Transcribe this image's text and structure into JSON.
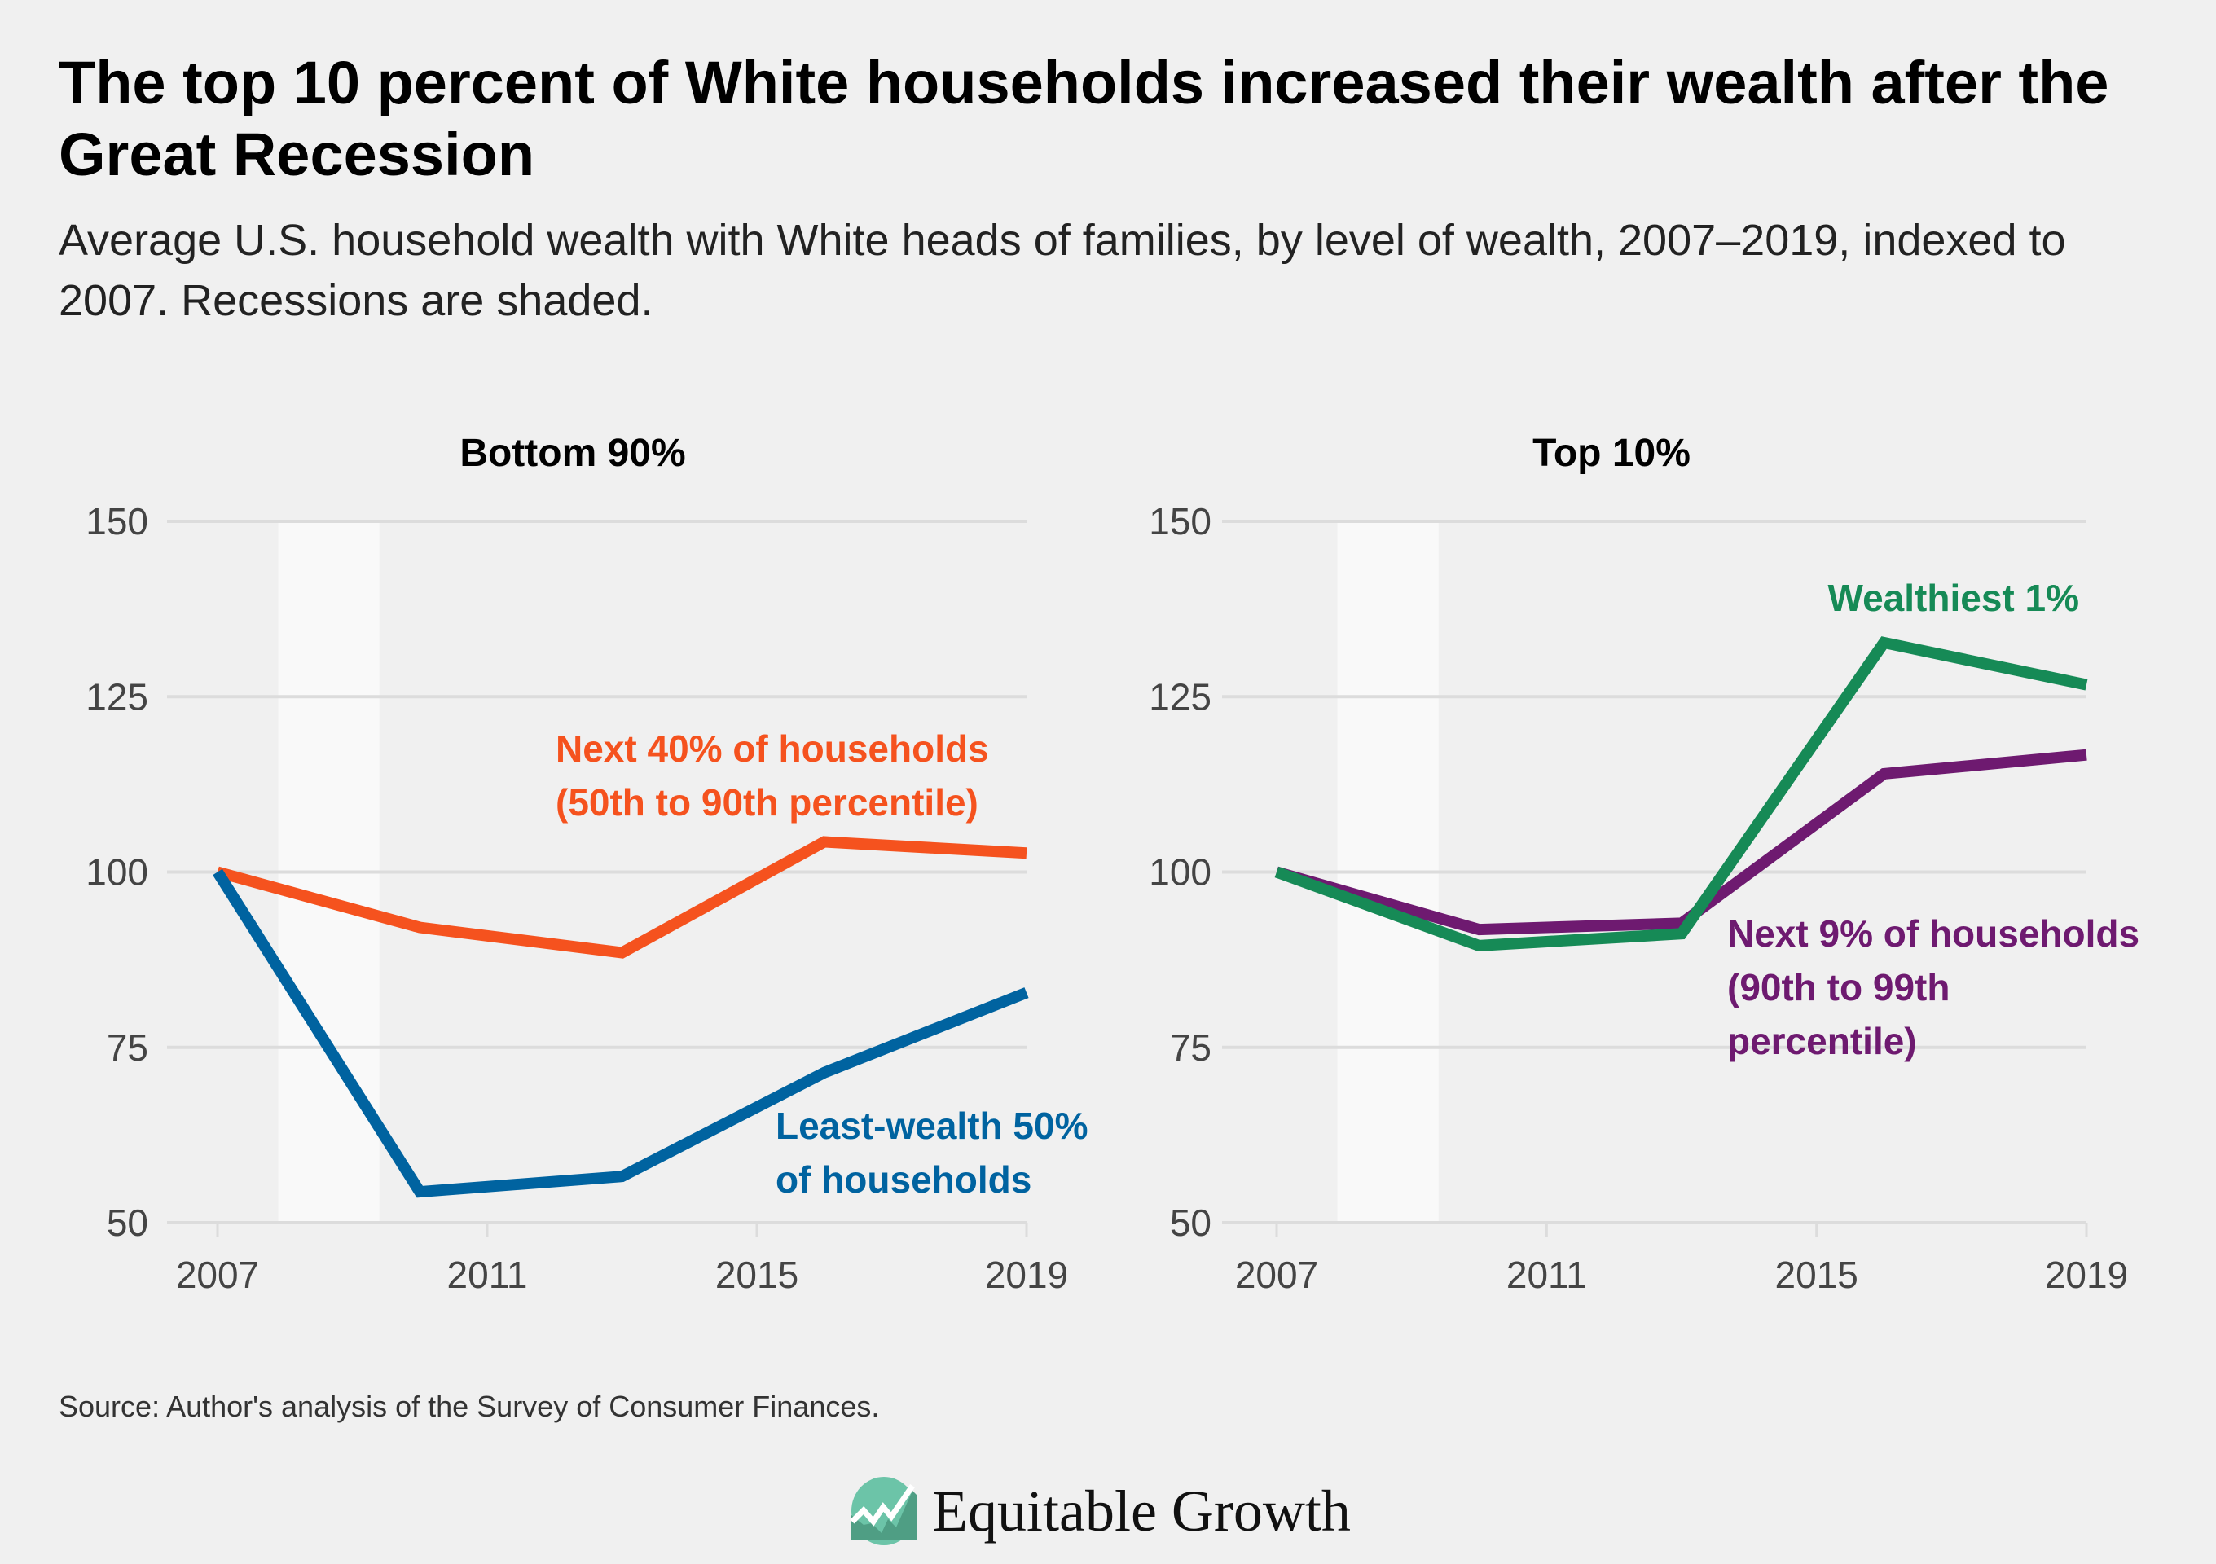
{
  "header": {
    "title": "The top 10 percent of White households increased their wealth after the Great Recession",
    "subtitle": "Average U.S. household wealth with White heads of families, by level of wealth, 2007–2019, indexed to 2007. Recessions are shaded."
  },
  "chart_data": [
    {
      "type": "line",
      "title": "Bottom 90%",
      "x": [
        2007,
        2010,
        2013,
        2016,
        2019
      ],
      "x_ticks": [
        "2007",
        "2011",
        "2015",
        "2019"
      ],
      "y_ticks": [
        "50",
        "75",
        "100",
        "125",
        "150"
      ],
      "ylim": [
        50,
        150
      ],
      "xlim": [
        2007,
        2019
      ],
      "grid": "horizontal",
      "recession_shading": [
        2007.9,
        2009.4
      ],
      "series": [
        {
          "name": "Next 40% of households (50th to 90th percentile)",
          "label_lines": [
            "Next 40% of households",
            "(50th to 90th percentile)"
          ],
          "color": "#f5521e",
          "values": [
            100,
            92.1,
            88.5,
            104.3,
            102.7
          ]
        },
        {
          "name": "Least-wealth 50% of households",
          "label_lines": [
            "Least-wealth 50%",
            "of households"
          ],
          "color": "#0063a0",
          "values": [
            100,
            54.4,
            56.6,
            71.4,
            82.8
          ]
        }
      ]
    },
    {
      "type": "line",
      "title": "Top 10%",
      "x": [
        2007,
        2010,
        2013,
        2016,
        2019
      ],
      "x_ticks": [
        "2007",
        "2011",
        "2015",
        "2019"
      ],
      "y_ticks": [
        "50",
        "75",
        "100",
        "125",
        "150"
      ],
      "ylim": [
        50,
        150
      ],
      "xlim": [
        2007,
        2019
      ],
      "grid": "horizontal",
      "recession_shading": [
        2007.9,
        2009.4
      ],
      "series": [
        {
          "name": "Next 9% of households (90th to 99th percentile)",
          "label_lines": [
            "Next 9% of households",
            "(90th to 99th",
            "percentile)"
          ],
          "color": "#6e1a70",
          "values": [
            100,
            91.8,
            92.7,
            114,
            116.7
          ]
        },
        {
          "name": "Wealthiest 1%",
          "label_lines": [
            "Wealthiest 1%"
          ],
          "color": "#168a56",
          "values": [
            100,
            89.5,
            91.2,
            132.7,
            126.7
          ]
        }
      ]
    }
  ],
  "footer": {
    "source": "Source: Author's analysis of the Survey of Consumer Finances.",
    "logo_text": "Equitable Growth"
  }
}
